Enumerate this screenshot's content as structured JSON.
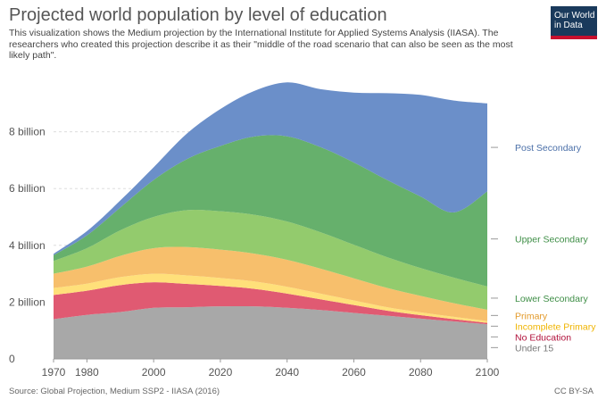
{
  "header": {
    "title": "Projected world population by level of education",
    "subtitle": "This visualization shows the Medium projection by the International Institute for Applied Systems Analysis (IIASA). The researchers who created this projection describe it as their \"middle of the road scenario that can also be seen as the most likely path\"."
  },
  "logo": {
    "line1": "Our World",
    "line2": "in Data"
  },
  "footer": {
    "source": "Source: Global Projection, Medium SSP2 - IIASA (2016)",
    "license": "CC BY-SA"
  },
  "chart_data": {
    "type": "area",
    "stacked": true,
    "x": [
      1970,
      1980,
      1990,
      2000,
      2010,
      2020,
      2030,
      2040,
      2050,
      2060,
      2070,
      2080,
      2090,
      2100
    ],
    "xticks": [
      1970,
      1980,
      2000,
      2020,
      2040,
      2060,
      2080,
      2100
    ],
    "xlim": [
      1970,
      2100
    ],
    "ylim": [
      0,
      10
    ],
    "yunit": "billion",
    "yticks": [
      {
        "value": 0,
        "label": "0"
      },
      {
        "value": 2,
        "label": "2 billion"
      },
      {
        "value": 4,
        "label": "4 billion"
      },
      {
        "value": 6,
        "label": "6 billion"
      },
      {
        "value": 8,
        "label": "8 billion"
      }
    ],
    "grid": true,
    "legend": "right",
    "series": [
      {
        "name": "Under 15",
        "color": "#a8a8a8",
        "values": [
          1.4,
          1.55,
          1.65,
          1.8,
          1.82,
          1.85,
          1.85,
          1.8,
          1.72,
          1.62,
          1.52,
          1.42,
          1.32,
          1.22
        ]
      },
      {
        "name": "No Education",
        "color": "#e05a72",
        "values": [
          0.85,
          0.85,
          0.95,
          0.9,
          0.82,
          0.72,
          0.62,
          0.5,
          0.38,
          0.28,
          0.18,
          0.12,
          0.08,
          0.05
        ]
      },
      {
        "name": "Incomplete Primary",
        "color": "#ffe07a",
        "values": [
          0.25,
          0.25,
          0.28,
          0.3,
          0.3,
          0.28,
          0.26,
          0.24,
          0.2,
          0.16,
          0.12,
          0.1,
          0.08,
          0.06
        ]
      },
      {
        "name": "Primary",
        "color": "#f7bf6c",
        "values": [
          0.5,
          0.6,
          0.75,
          0.9,
          1.0,
          1.0,
          0.98,
          0.95,
          0.88,
          0.78,
          0.68,
          0.58,
          0.48,
          0.4
        ]
      },
      {
        "name": "Lower Secondary",
        "color": "#93cb6d",
        "values": [
          0.45,
          0.65,
          0.9,
          1.1,
          1.3,
          1.35,
          1.37,
          1.35,
          1.28,
          1.18,
          1.08,
          0.98,
          0.9,
          0.82
        ]
      },
      {
        "name": "Upper Secondary",
        "color": "#66b06c",
        "values": [
          0.2,
          0.45,
          0.8,
          1.3,
          1.8,
          2.3,
          2.75,
          3.0,
          3.0,
          2.9,
          2.72,
          2.52,
          2.3,
          3.35
        ]
      },
      {
        "name": "Post Secondary",
        "color": "#6b8fc9",
        "values": [
          0.05,
          0.15,
          0.25,
          0.45,
          0.9,
          1.3,
          1.6,
          1.9,
          2.04,
          2.46,
          3.06,
          3.58,
          3.94,
          3.1
        ]
      }
    ]
  }
}
